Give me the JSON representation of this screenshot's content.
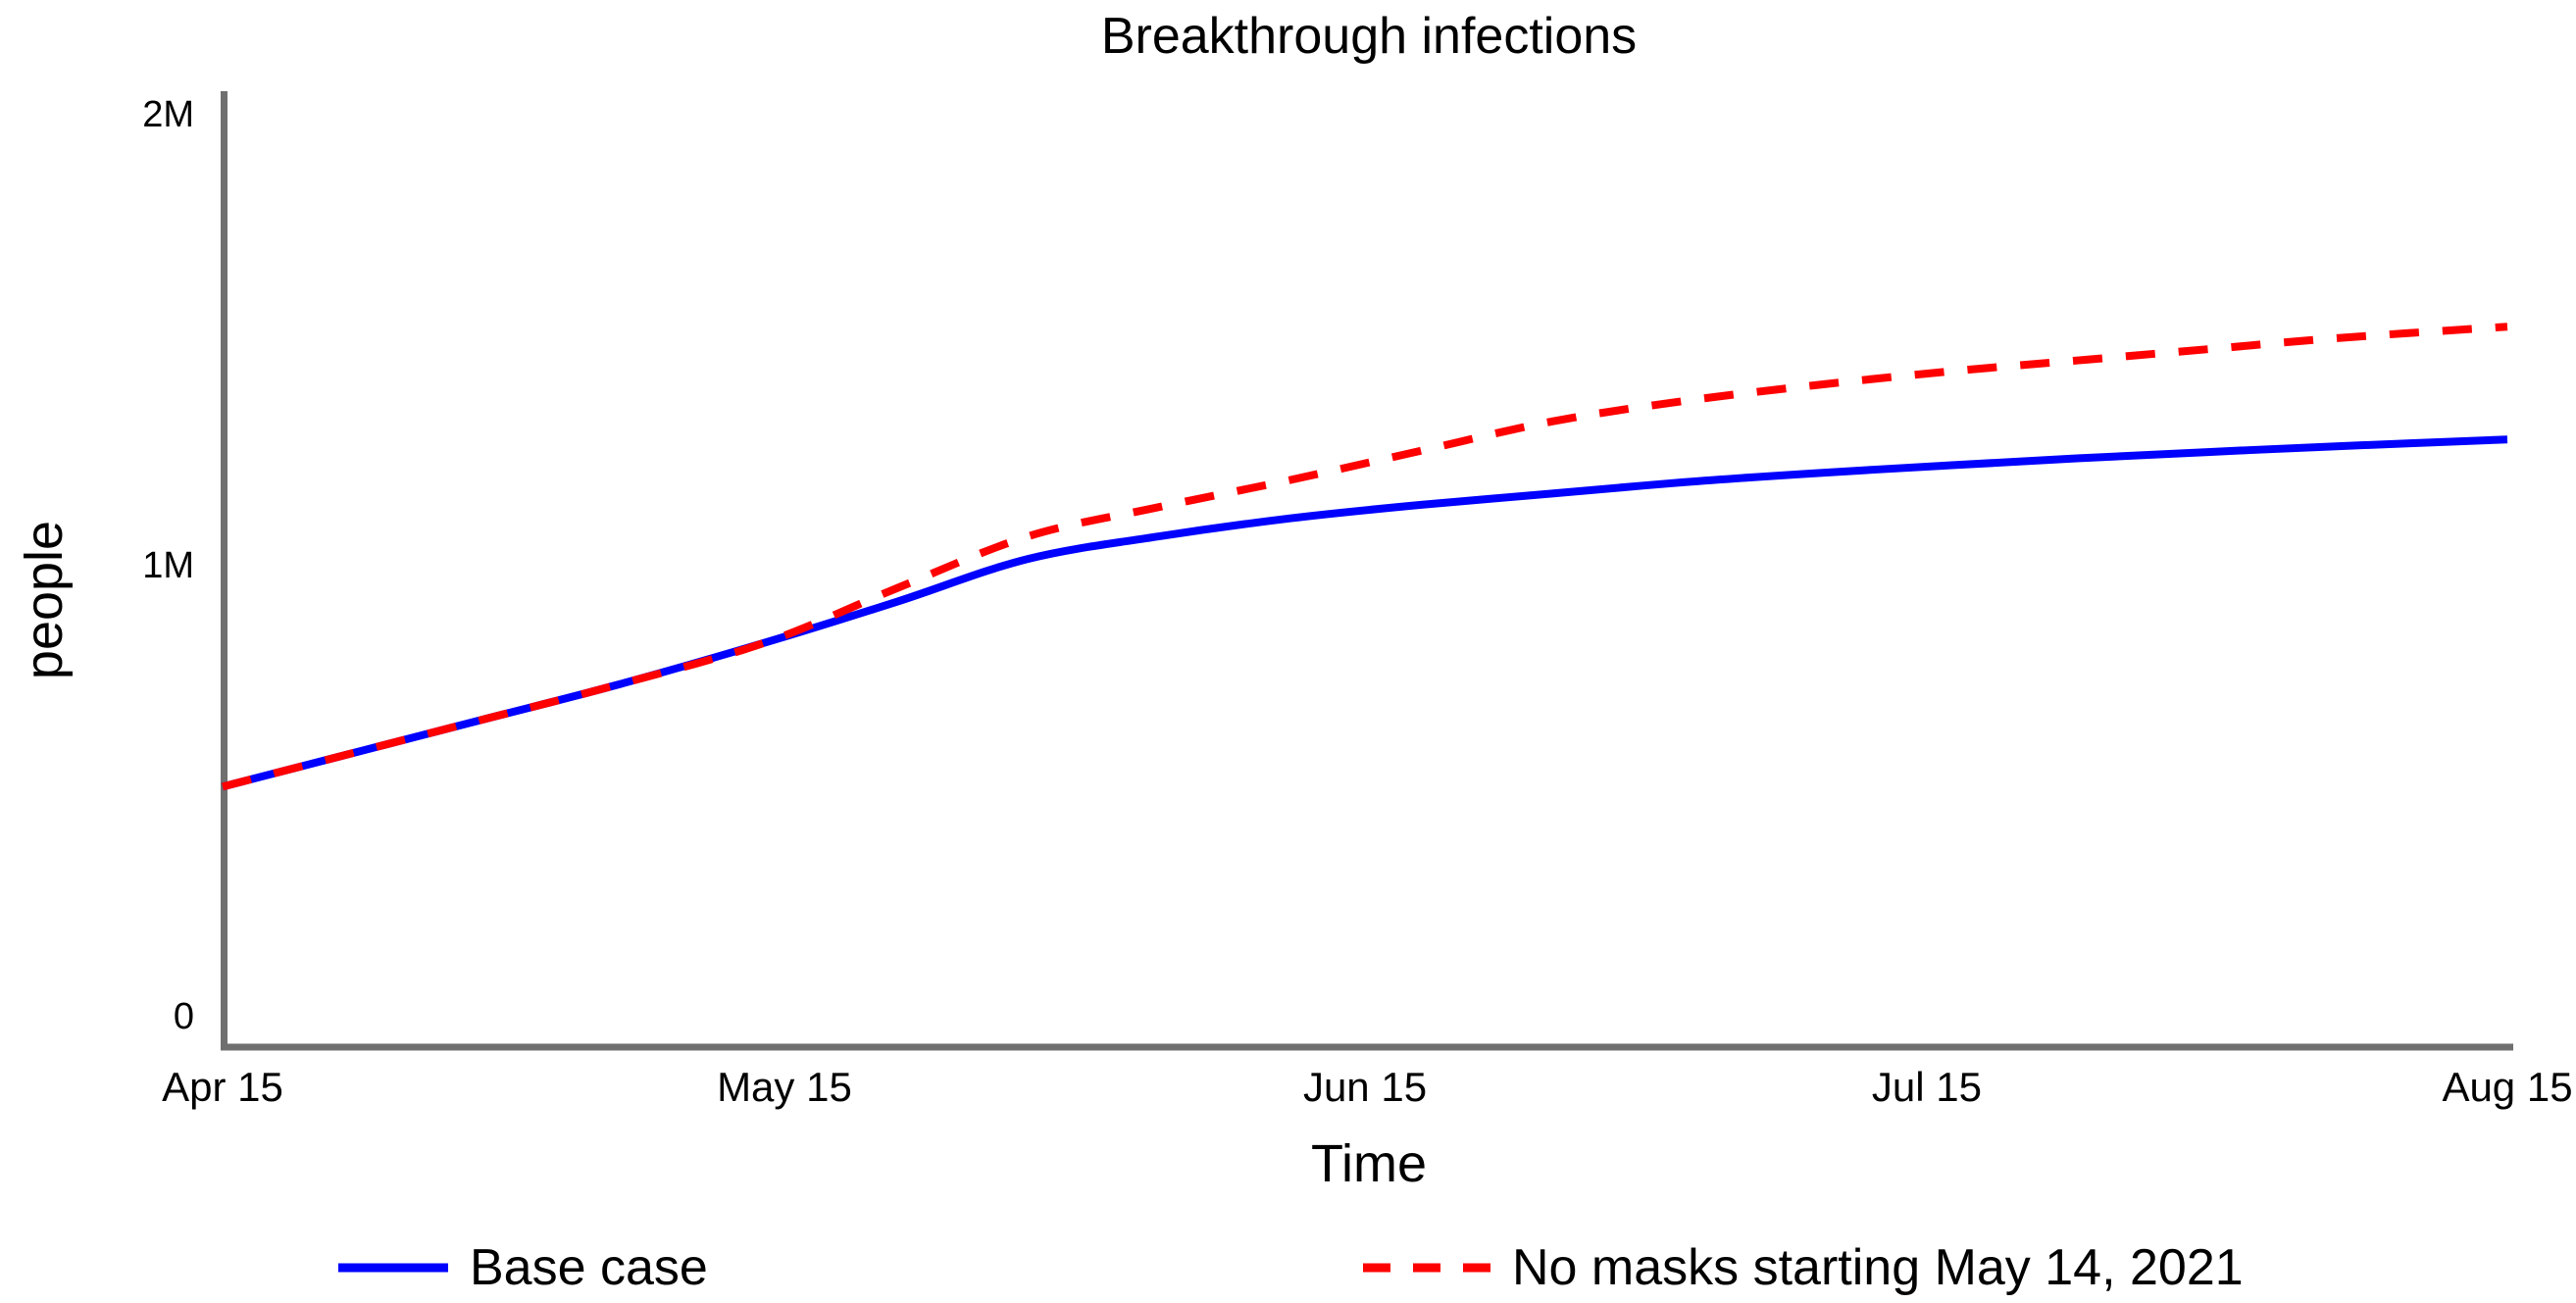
{
  "chart_data": {
    "type": "line",
    "title": "Breakthrough infections",
    "xlabel": "Time",
    "ylabel": "people",
    "grid": false,
    "legend_position": "bottom",
    "axis_color": "#6f6f6f",
    "xlim_days": [
      0,
      122
    ],
    "ylim": [
      0,
      2000000
    ],
    "x_ticks": [
      {
        "day": 0,
        "label": "Apr 15"
      },
      {
        "day": 30,
        "label": "May 15"
      },
      {
        "day": 61,
        "label": "Jun 15"
      },
      {
        "day": 91,
        "label": "Jul 15"
      },
      {
        "day": 122,
        "label": "Aug 15"
      }
    ],
    "y_ticks": [
      {
        "value": 0,
        "label": "0"
      },
      {
        "value": 1000000,
        "label": "1M"
      },
      {
        "value": 2000000,
        "label": "2M"
      }
    ],
    "x_days": [
      0,
      7,
      14,
      21,
      29,
      36,
      43,
      50,
      57,
      64,
      71,
      78,
      85,
      92,
      99,
      106,
      113,
      122
    ],
    "series": [
      {
        "name": "Base case",
        "color": "#0000ff",
        "line_style": "solid",
        "values": [
          510000,
          585000,
          660000,
          735000,
          830000,
          920000,
          1015000,
          1065000,
          1105000,
          1135000,
          1160000,
          1185000,
          1205000,
          1222000,
          1238000,
          1252000,
          1265000,
          1280000
        ]
      },
      {
        "name": "No masks starting May 14, 2021",
        "color": "#ff0000",
        "line_style": "dashed",
        "values": [
          510000,
          585000,
          660000,
          735000,
          830000,
          950000,
          1065000,
          1130000,
          1190000,
          1255000,
          1320000,
          1365000,
          1400000,
          1430000,
          1455000,
          1480000,
          1505000,
          1530000
        ]
      }
    ],
    "divergence_note_day": 29
  }
}
